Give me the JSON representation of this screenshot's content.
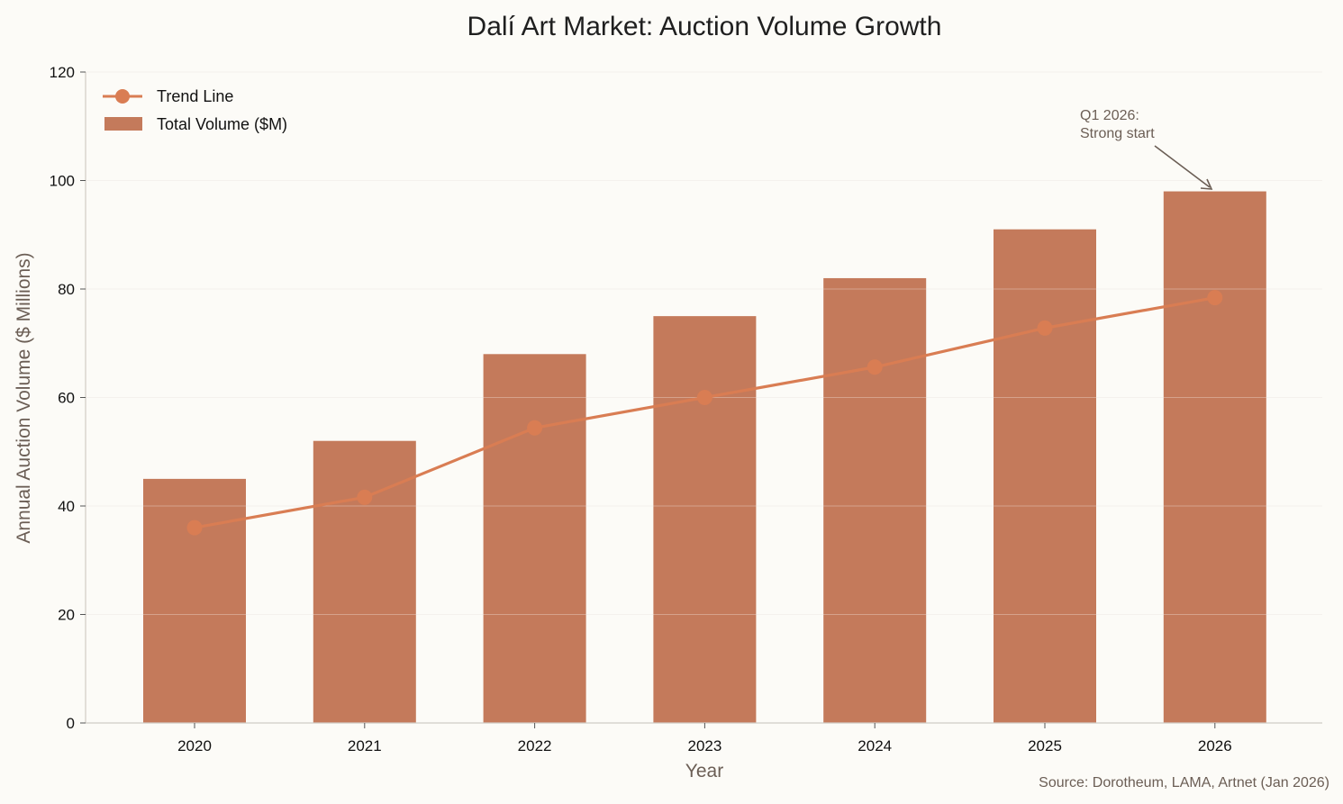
{
  "chart_data": {
    "type": "bar",
    "title": "Dalí Art Market: Auction Volume Growth",
    "xlabel": "Year",
    "ylabel": "Annual Auction Volume ($ Millions)",
    "categories": [
      "2020",
      "2021",
      "2022",
      "2023",
      "2024",
      "2025",
      "2026"
    ],
    "ylim": [
      0,
      120
    ],
    "yticks": [
      0,
      20,
      40,
      60,
      80,
      100,
      120
    ],
    "grid": true,
    "legend_position": "top-left",
    "series": [
      {
        "name": "Total Volume ($M)",
        "type": "bar",
        "color": "#C47A5B",
        "values": [
          45,
          52,
          68,
          75,
          82,
          91,
          98
        ]
      },
      {
        "name": "Trend Line",
        "type": "line",
        "color": "#D97D53",
        "values": [
          36,
          41.6,
          54.4,
          60,
          65.6,
          72.8,
          78.4
        ]
      }
    ],
    "annotation": {
      "text": [
        "Q1 2026:",
        "Strong start"
      ],
      "category": "2026",
      "value": 98
    },
    "source": "Source: Dorotheum, LAMA, Artnet (Jan 2026)"
  }
}
